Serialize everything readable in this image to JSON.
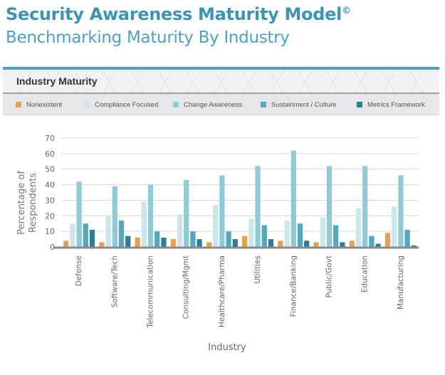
{
  "header": {
    "title": "Security Awareness Maturity Model",
    "title_mark": "©",
    "subtitle": "Benchmarking Maturity By Industry"
  },
  "panel": {
    "heading": "Industry Maturity"
  },
  "colors": {
    "Nonexistent": "#e8a04f",
    "Compliance Focused": "#cde6ec",
    "Change Awareness": "#8fcad7",
    "Sustainment / Culture": "#52a8bf",
    "Metrics Framework": "#2d7d96"
  },
  "chart_data": {
    "type": "bar",
    "title": "Industry Maturity",
    "xlabel": "Industry",
    "ylabel": "Percentage of Respondents",
    "ylim": [
      0,
      70
    ],
    "yticks": [
      0,
      10,
      20,
      30,
      40,
      50,
      60,
      70
    ],
    "legend_position": "top",
    "grid": true,
    "categories": [
      "Defense",
      "Software/Tech",
      "Telecommunication",
      "Consulting/Mgmt",
      "Healthcare/Pharma",
      "Utilities",
      "Finance/Banking",
      "Public/Govt",
      "Education",
      "Manufacturing"
    ],
    "series": [
      {
        "name": "Nonexistent",
        "values": [
          4,
          3,
          6,
          5,
          3,
          7,
          4,
          3,
          4,
          9
        ]
      },
      {
        "name": "Compliance Focused",
        "values": [
          15,
          20,
          29,
          21,
          27,
          18,
          17,
          19,
          25,
          26
        ]
      },
      {
        "name": "Change Awareness",
        "values": [
          42,
          39,
          40,
          43,
          46,
          52,
          62,
          52,
          52,
          46
        ]
      },
      {
        "name": "Sustainment / Culture",
        "values": [
          15,
          17,
          10,
          10,
          10,
          14,
          15,
          14,
          7,
          11
        ]
      },
      {
        "name": "Metrics Framework",
        "values": [
          11,
          7,
          6,
          5,
          5,
          5,
          4,
          3,
          2,
          1
        ]
      }
    ]
  }
}
